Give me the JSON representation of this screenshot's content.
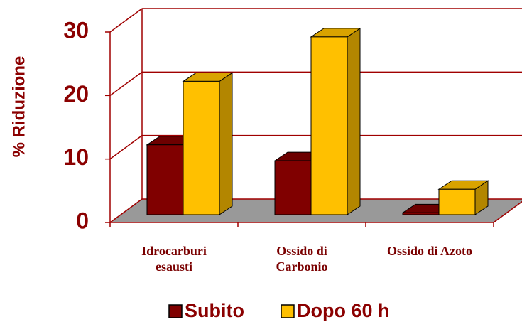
{
  "chart_data": {
    "type": "bar3d",
    "y_label": "% Riduzione",
    "categories": [
      "Idrocarburi esausti",
      "Ossido di Carbonio",
      "Ossido di Azoto"
    ],
    "series": [
      {
        "name": "Subito",
        "color": "#800000",
        "values": [
          11,
          8.5,
          0.3
        ]
      },
      {
        "name": "Dopo 60 h",
        "color": "#ffc000",
        "values": [
          21,
          28,
          4
        ]
      }
    ],
    "ylim": [
      0,
      30
    ],
    "yticks": [
      0,
      10,
      20,
      30
    ],
    "grid": true
  }
}
